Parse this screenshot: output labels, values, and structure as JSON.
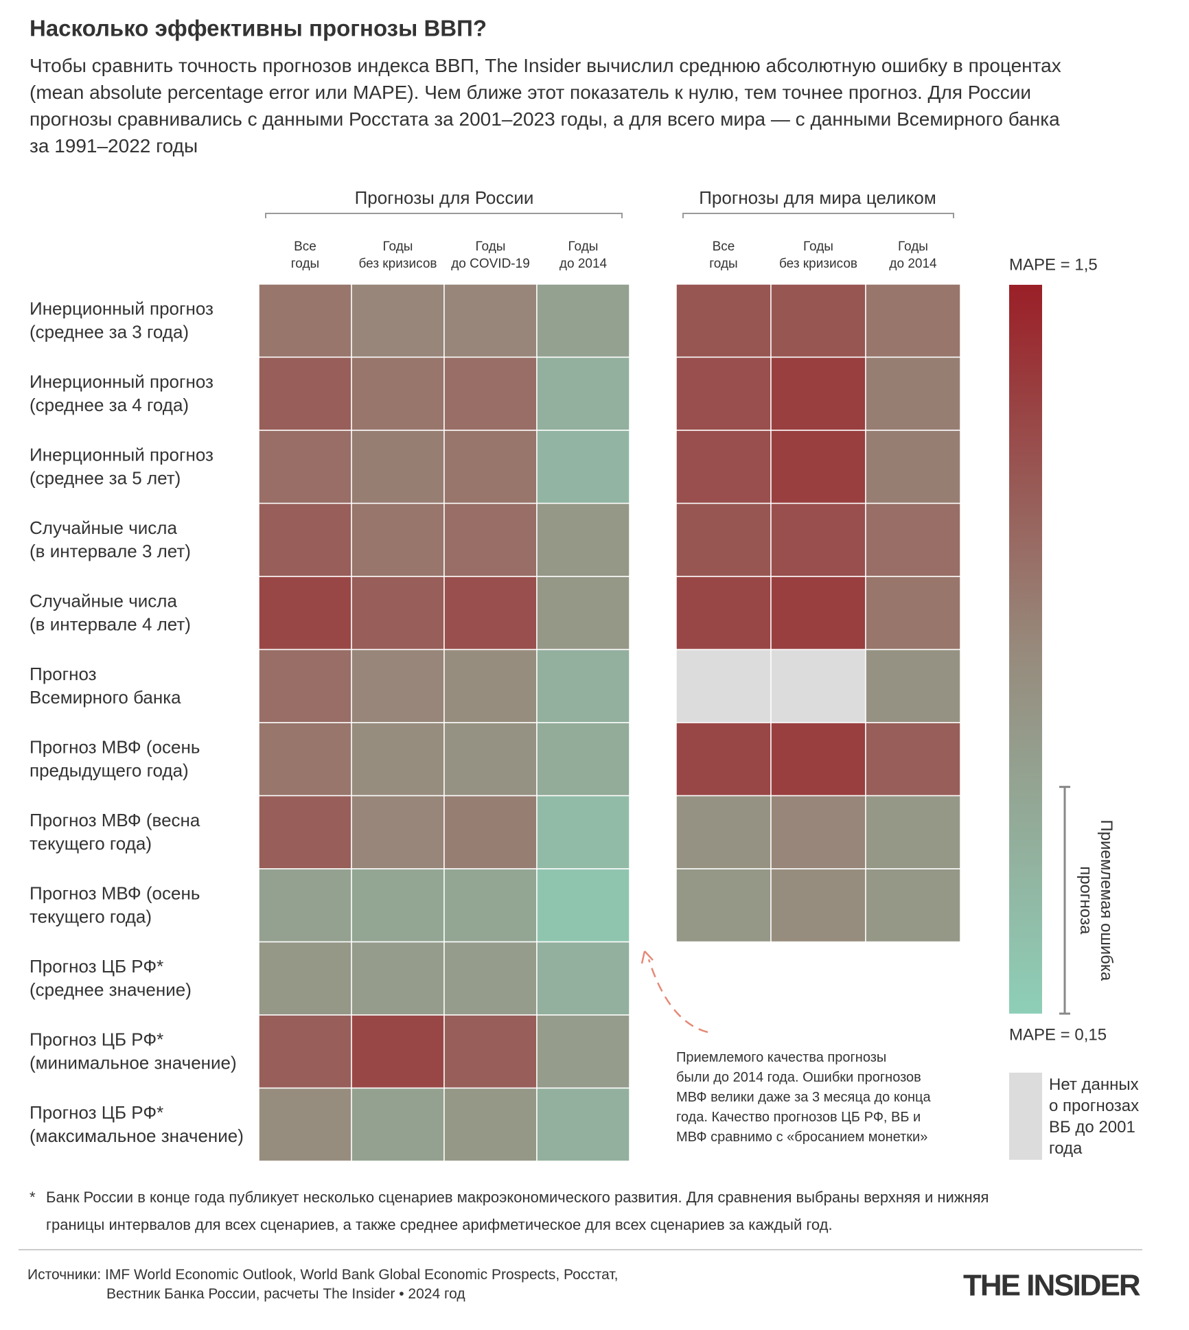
{
  "chart_data": {
    "type": "heatmap",
    "title": "Насколько эффективны прогнозы ВВП?",
    "subtitle": "Чтобы сравнить точность прогнозов индекса ВВП, The Insider вычислил среднюю абсолютную ошибку в процентах\n(mean absolute percentage error или MAPE). Чем ближе этот показатель к нулю, тем точнее прогноз. Для России\nпрогнозы сравнивались с данными Росстата за 2001–2023 годы, а для всего мира — с данными Всемирного банка\nза 1991–2022 годы",
    "rows": [
      "Инерционный прогноз\n(среднее за 3 года)",
      "Инерционный прогноз\n(среднее за 4 года)",
      "Инерционный прогноз\n(среднее за 5 лет)",
      "Случайные числа\n(в интервале 3 лет)",
      "Случайные числа\n(в интервале 4 лет)",
      "Прогноз\nВсемирного банка",
      "Прогноз МВФ (осень\nпредыдущего года)",
      "Прогноз МВФ (весна\nтекущего года)",
      "Прогноз МВФ (осень\nтекущего года)",
      "Прогноз ЦБ РФ*\n(среднее значение)",
      "Прогноз ЦБ РФ*\n(минимальное значение)",
      "Прогноз ЦБ РФ*\n(максимальное значение)"
    ],
    "panels": [
      {
        "title": "Прогнозы для России",
        "columns": [
          "Все\nгоды",
          "Годы\nбез кризисов",
          "Годы\nдо COVID-19",
          "Годы\nдо 2014"
        ],
        "values": [
          [
            0.95,
            0.85,
            0.85,
            0.6
          ],
          [
            1.1,
            0.95,
            1.0,
            0.45
          ],
          [
            1.0,
            0.9,
            0.95,
            0.4
          ],
          [
            1.1,
            0.95,
            1.0,
            0.7
          ],
          [
            1.25,
            1.1,
            1.2,
            0.7
          ],
          [
            1.0,
            0.85,
            0.8,
            0.45
          ],
          [
            0.95,
            0.8,
            0.75,
            0.5
          ],
          [
            1.1,
            0.85,
            0.9,
            0.35
          ],
          [
            0.6,
            0.55,
            0.55,
            0.25
          ],
          [
            0.7,
            0.65,
            0.65,
            0.45
          ],
          [
            1.1,
            1.25,
            1.1,
            0.65
          ],
          [
            0.8,
            0.6,
            0.7,
            0.45
          ]
        ]
      },
      {
        "title": "Прогнозы для мира целиком",
        "columns": [
          "Все\nгоды",
          "Годы\nбез кризисов",
          "Годы\nдо 2014"
        ],
        "values": [
          [
            1.15,
            1.15,
            0.95
          ],
          [
            1.2,
            1.3,
            0.9
          ],
          [
            1.2,
            1.3,
            0.9
          ],
          [
            1.15,
            1.2,
            1.0
          ],
          [
            1.25,
            1.3,
            0.95
          ],
          [
            null,
            null,
            0.75
          ],
          [
            1.25,
            1.3,
            1.1
          ],
          [
            0.75,
            0.85,
            0.7
          ],
          [
            0.7,
            0.8,
            0.7
          ]
        ]
      }
    ],
    "colorbar": {
      "lim": [
        0.15,
        1.5
      ],
      "colors": [
        "#8ecfb8",
        "#978a7c",
        "#9a1f27"
      ],
      "ticks": [
        {
          "value": 1.5,
          "label": "MAPE = 1,5"
        },
        {
          "value": 0.15,
          "label": "MAPE = 0,15"
        }
      ]
    },
    "acceptable_error": {
      "label": "Приемлемая ошибка\nпрогноза",
      "range": [
        0.15,
        0.57
      ]
    },
    "no_data": {
      "label": "Нет данных\nо прогнозах\nВБ до 2001\nгода",
      "color": "#dcdcdc"
    },
    "annotation": "Приемлемого качества прогнозы\nбыли до 2014 года. Ошибки прогнозов\nМВФ велики даже за 3 месяца до конца\nгода. Качество прогнозов ЦБ РФ, ВБ и\nМВФ сравнимо с «бросанием монетки»",
    "footnote_mark": "*",
    "footnote": "Банк России в конце года публикует несколько сценариев макроэкономического развития. Для сравнения выбраны верхняя и нижняя\nграницы интервалов для всех сценариев, а также среднее арифметическое для всех сценариев за каждый год.",
    "source": "Источники: IMF World Economic Outlook, World Bank Global Economic Prospects, Росстат,\nВестник Банка России, расчеты The Insider • 2024 год",
    "logo": "THE INSIDER"
  }
}
